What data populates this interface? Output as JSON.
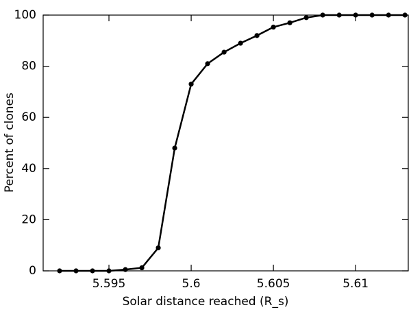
{
  "chart_data": {
    "type": "line",
    "x_label": "Solar distance reached (R_s)",
    "y_label": "Percent of clones",
    "x": [
      5.592,
      5.593,
      5.594,
      5.595,
      5.596,
      5.597,
      5.598,
      5.599,
      5.6,
      5.601,
      5.602,
      5.603,
      5.604,
      5.605,
      5.606,
      5.607,
      5.608,
      5.609,
      5.61,
      5.611,
      5.612,
      5.613
    ],
    "values": [
      0,
      0,
      0,
      0,
      0.5,
      1.2,
      9,
      48,
      73,
      81,
      85.5,
      89,
      92,
      95.3,
      97,
      99,
      100,
      100,
      100,
      100,
      100,
      100
    ],
    "color": "#000000",
    "xlim": [
      5.591,
      5.6132
    ],
    "ylim": [
      0,
      100
    ],
    "xticks": [
      5.595,
      5.6,
      5.605,
      5.61
    ],
    "yticks": [
      0,
      20,
      40,
      60,
      80,
      100
    ],
    "grid": false
  }
}
